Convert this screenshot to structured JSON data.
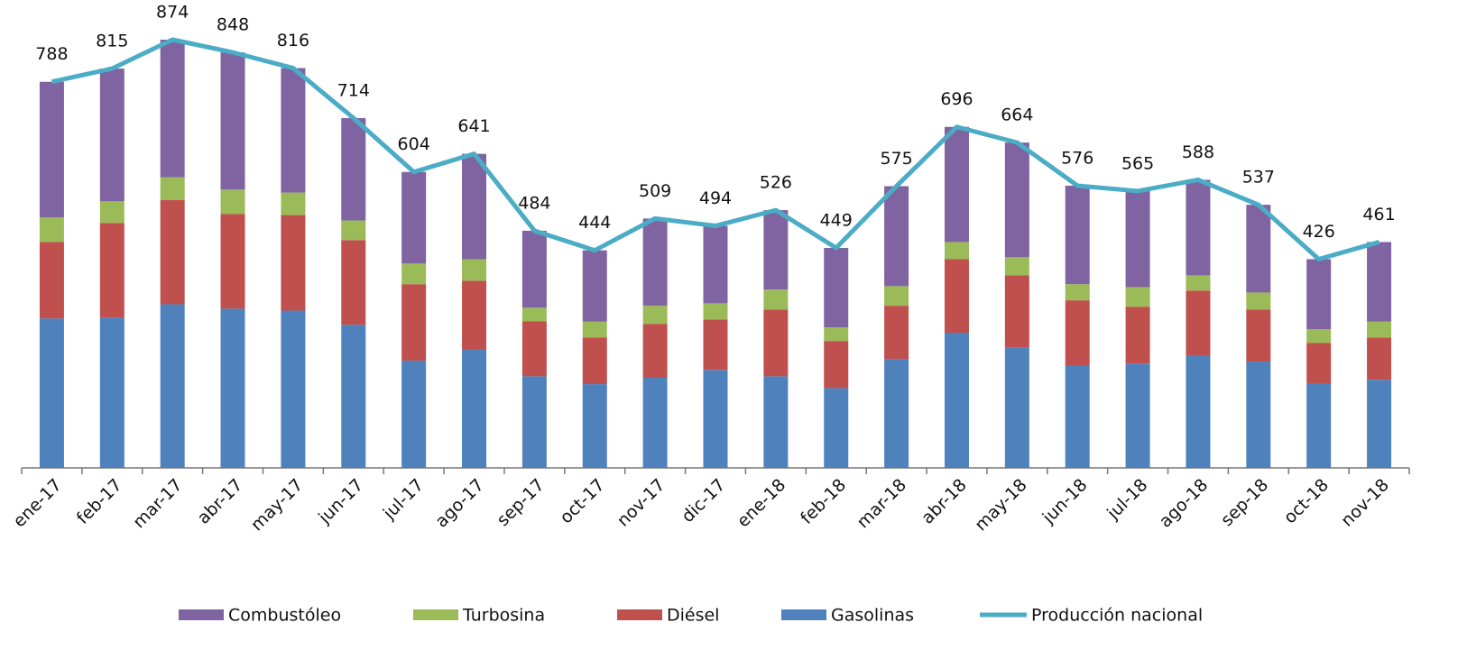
{
  "chart_data": {
    "type": "bar",
    "stacked": true,
    "categories": [
      "ene-17",
      "feb-17",
      "mar-17",
      "abr-17",
      "may-17",
      "jun-17",
      "jul-17",
      "ago-17",
      "sep-17",
      "oct-17",
      "nov-17",
      "dic-17",
      "ene-18",
      "feb-18",
      "mar-18",
      "abr-18",
      "may-18",
      "jun-18",
      "jul-18",
      "ago-18",
      "sep-18",
      "oct-18",
      "nov-18"
    ],
    "series": [
      {
        "name": "Combustóleo",
        "color": "#8064a2",
        "values": [
          277,
          271,
          281,
          280,
          254,
          209,
          187,
          215,
          157,
          145,
          178,
          158,
          162,
          162,
          204,
          235,
          234,
          201,
          196,
          195,
          179,
          143,
          162
        ]
      },
      {
        "name": "Turbosina",
        "color": "#9bbb59",
        "values": [
          50,
          44,
          46,
          50,
          46,
          40,
          42,
          44,
          28,
          33,
          37,
          33,
          41,
          28,
          40,
          35,
          37,
          33,
          40,
          31,
          35,
          28,
          33
        ]
      },
      {
        "name": "Diésel",
        "color": "#c0504d",
        "values": [
          156,
          193,
          213,
          193,
          195,
          173,
          156,
          141,
          112,
          95,
          110,
          103,
          136,
          96,
          109,
          150,
          147,
          134,
          116,
          132,
          106,
          82,
          86
        ]
      },
      {
        "name": "Gasolinas",
        "color": "#4f81bd",
        "values": [
          305,
          307,
          334,
          325,
          321,
          292,
          219,
          241,
          187,
          171,
          184,
          200,
          187,
          163,
          222,
          276,
          246,
          208,
          213,
          230,
          217,
          173,
          180
        ]
      },
      {
        "name": "Producción nacional",
        "type": "line",
        "color": "#4bacc6",
        "values": [
          788,
          815,
          874,
          848,
          816,
          714,
          604,
          641,
          484,
          444,
          509,
          494,
          526,
          449,
          575,
          696,
          664,
          576,
          565,
          588,
          537,
          426,
          461
        ]
      }
    ],
    "legend": "bottom"
  }
}
